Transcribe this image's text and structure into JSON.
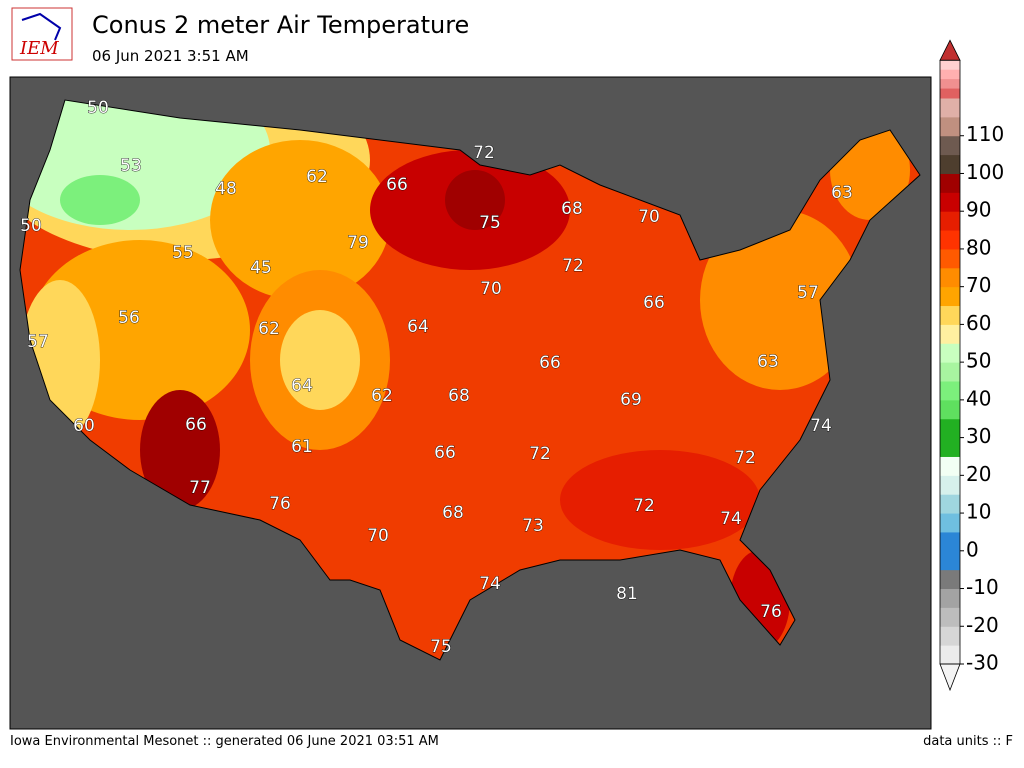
{
  "header": {
    "logo": "IEM",
    "title": "Conus 2 meter Air Temperature",
    "subtitle": "06 Jun 2021 3:51 AM"
  },
  "footer": {
    "left": "Iowa Environmental Mesonet :: generated 06 June 2021 03:51 AM",
    "right": "data units :: F"
  },
  "map": {
    "labels": [
      50,
      53,
      48,
      62,
      66,
      72,
      75,
      68,
      70,
      63,
      50,
      55,
      45,
      79,
      72,
      70,
      57,
      56,
      62,
      64,
      66,
      57,
      66,
      63,
      64,
      62,
      68,
      69,
      60,
      66,
      61,
      66,
      72,
      74,
      72,
      77,
      76,
      68,
      72,
      74,
      73,
      70,
      74,
      81,
      76,
      75
    ]
  },
  "colorbar": {
    "clim": [
      -30,
      120
    ],
    "ticks": [
      -30,
      -20,
      -10,
      0,
      10,
      20,
      30,
      40,
      50,
      60,
      70,
      80,
      90,
      100,
      110
    ],
    "colors": [
      "#ececec",
      "#d6d6d6",
      "#bdbdbd",
      "#a3a3a3",
      "#7a7a7a",
      "#2b86d6",
      "#2b86d6",
      "#6fbfe0",
      "#9fd6df",
      "#d6f1ec",
      "#f2fff4",
      "#22b022",
      "#22b022",
      "#5fe05f",
      "#7cf07c",
      "#a8f5a0",
      "#c8ffbf",
      "#fff0a0",
      "#ffd75a",
      "#ffa500",
      "#ff8c00",
      "#ff5a00",
      "#ff3300",
      "#e61e00",
      "#c80000",
      "#a00000",
      "#4e3e2e",
      "#6e5a50",
      "#c09080",
      "#e0b0a8"
    ],
    "top_colors": [
      "#ffd0d0",
      "#ffb0b0",
      "#f09090",
      "#e06060"
    ]
  }
}
